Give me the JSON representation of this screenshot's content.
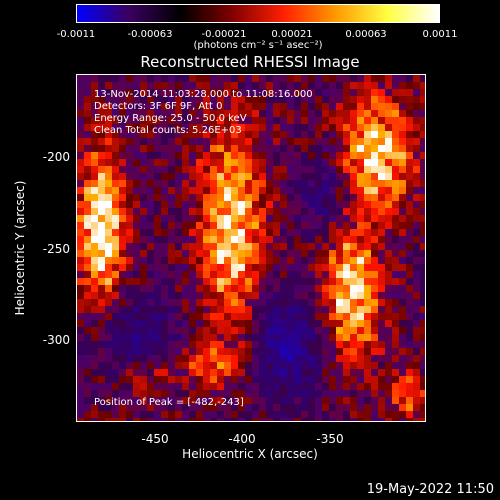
{
  "colorbar": {
    "ticks": [
      "-0.0011",
      "-0.00063",
      "-0.00021",
      "0.00021",
      "0.00063",
      "0.0011"
    ],
    "tick_values": [
      -0.0011,
      -0.00063,
      -0.00021,
      0.00021,
      0.00063,
      0.0011
    ],
    "units_label": "(photons cm⁻² s⁻¹ asec⁻²)",
    "colors": [
      "#0000ff",
      "#3a0060",
      "#000000",
      "#800000",
      "#ff2000",
      "#ff9900",
      "#ffff40",
      "#ffffff"
    ]
  },
  "chart_data": {
    "type": "heatmap",
    "title": "Reconstructed RHESSI Image",
    "xlabel": "Heliocentric X (arcsec)",
    "ylabel": "Heliocentric Y (arcsec)",
    "x_ticks": [
      "-450",
      "-400",
      "-350"
    ],
    "x_tick_values": [
      -450,
      -400,
      -350
    ],
    "y_ticks": [
      "-200",
      "-250",
      "-300"
    ],
    "y_tick_values": [
      -200,
      -250,
      -300
    ],
    "xlim": [
      -499,
      -390
    ],
    "ylim": [
      -350,
      -183
    ],
    "peak_position": [
      -482,
      -243
    ],
    "annotations": [
      "13-Nov-2014 11:03:28.000 to 11:08:16.000",
      "Detectors: 3F 6F 9F, Att 0",
      "Energy Range: 25.0 - 50.0 keV",
      "Clean     Total counts: 5.26E+03",
      "Position of Peak = [-482,-243]"
    ]
  },
  "footer": {
    "timestamp": "19-May-2022 11:50"
  }
}
